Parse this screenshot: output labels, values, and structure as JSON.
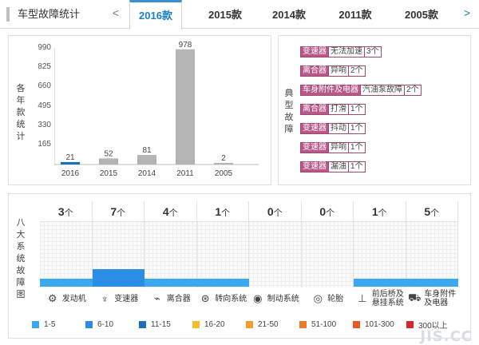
{
  "header": {
    "title": "车型故障统计",
    "prev_icon": "chevron-left-icon",
    "next_icon": "chevron-right-icon",
    "tabs": [
      {
        "label": "2016款",
        "active": true
      },
      {
        "label": "2015款",
        "active": false
      },
      {
        "label": "2014款",
        "active": false
      },
      {
        "label": "2011款",
        "active": false
      },
      {
        "label": "2005款",
        "active": false
      }
    ]
  },
  "chart_data": {
    "type": "bar",
    "ylabel": "各年款统计",
    "categories": [
      "2016",
      "2015",
      "2014",
      "2011",
      "2005"
    ],
    "values": [
      21,
      52,
      81,
      978,
      2
    ],
    "yticks": [
      "990",
      "825",
      "660",
      "495",
      "330",
      "165"
    ],
    "ylim": [
      0,
      990
    ],
    "colors": [
      "#1a6fb5",
      "#b5b5b5",
      "#b5b5b5",
      "#b5b5b5",
      "#b5b5b5"
    ]
  },
  "typical": {
    "label": "典型故障",
    "items": [
      {
        "cat": "变速器",
        "name": "无法加速",
        "count": "3个"
      },
      {
        "cat": "离合器",
        "name": "异响",
        "count": "2个"
      },
      {
        "cat": "车身附件及电器",
        "name": "汽油泵故障",
        "count": "2个"
      },
      {
        "cat": "离合器",
        "name": "打滑",
        "count": "1个"
      },
      {
        "cat": "变速器",
        "name": "抖动",
        "count": "1个"
      },
      {
        "cat": "变速器",
        "name": "异响",
        "count": "1个"
      },
      {
        "cat": "变速器",
        "name": "漏油",
        "count": "1个"
      }
    ]
  },
  "systems": {
    "label": "八大系统故障图",
    "items": [
      {
        "count": "3",
        "unit": "个",
        "name": "发动机",
        "icon": "engine-icon",
        "level": 1,
        "color": "#3aaaf0"
      },
      {
        "count": "7",
        "unit": "个",
        "name": "变速器",
        "icon": "gear-shift-icon",
        "level": 2,
        "color": "#2a8ee6"
      },
      {
        "count": "4",
        "unit": "个",
        "name": "离合器",
        "icon": "clutch-pedal-icon",
        "level": 1,
        "color": "#3aaaf0"
      },
      {
        "count": "1",
        "unit": "个",
        "name": "转向系统",
        "icon": "steering-wheel-icon",
        "level": 1,
        "color": "#3aaaf0"
      },
      {
        "count": "0",
        "unit": "个",
        "name": "制动系统",
        "icon": "brake-disc-icon",
        "level": 0,
        "color": "#3aaaf0"
      },
      {
        "count": "0",
        "unit": "个",
        "name": "轮胎",
        "icon": "tire-icon",
        "level": 0,
        "color": "#3aaaf0"
      },
      {
        "count": "1",
        "unit": "个",
        "name": "前后桥及悬挂系统",
        "name_line1": "前后桥及",
        "name_line2": "悬挂系统",
        "icon": "suspension-icon",
        "level": 1,
        "color": "#3aaaf0"
      },
      {
        "count": "5",
        "unit": "个",
        "name": "车身附件及电器",
        "name_line1": "车身附件",
        "name_line2": "及电器",
        "icon": "car-body-icon",
        "level": 1,
        "color": "#3aaaf0"
      }
    ]
  },
  "legend": [
    {
      "label": "1-5",
      "color": "#39a9ef"
    },
    {
      "label": "6-10",
      "color": "#2b8ce6"
    },
    {
      "label": "11-15",
      "color": "#1a6fb5"
    },
    {
      "label": "16-20",
      "color": "#f4bf2a"
    },
    {
      "label": "21-50",
      "color": "#f0a030"
    },
    {
      "label": "51-100",
      "color": "#ec7a2a"
    },
    {
      "label": "101-300",
      "color": "#e85a22"
    },
    {
      "label": "300以上",
      "color": "#d9262a"
    }
  ],
  "watermark": "JIS.CC"
}
